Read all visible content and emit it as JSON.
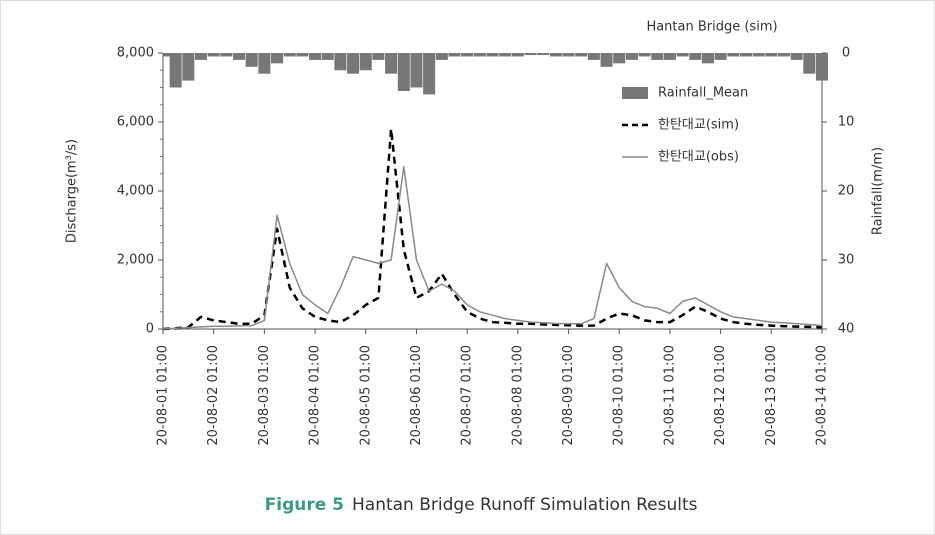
{
  "chart_data": {
    "type": "line",
    "title": "Hantan Bridge (sim)",
    "caption": {
      "label": "Figure 5",
      "text": "Hantan Bridge Runoff Simulation Results"
    },
    "ylabel": "Discharge(m³/s)",
    "y2label": "Rainfall(m/m)",
    "x": [
      "20-08-01 01:00",
      "20-08-01 07:00",
      "20-08-01 13:00",
      "20-08-01 19:00",
      "20-08-02 01:00",
      "20-08-02 07:00",
      "20-08-02 13:00",
      "20-08-02 19:00",
      "20-08-03 01:00",
      "20-08-03 07:00",
      "20-08-03 13:00",
      "20-08-03 19:00",
      "20-08-04 01:00",
      "20-08-04 07:00",
      "20-08-04 13:00",
      "20-08-04 19:00",
      "20-08-05 01:00",
      "20-08-05 07:00",
      "20-08-05 13:00",
      "20-08-05 19:00",
      "20-08-06 01:00",
      "20-08-06 07:00",
      "20-08-06 13:00",
      "20-08-06 19:00",
      "20-08-07 01:00",
      "20-08-07 07:00",
      "20-08-07 13:00",
      "20-08-07 19:00",
      "20-08-08 01:00",
      "20-08-08 07:00",
      "20-08-08 13:00",
      "20-08-08 19:00",
      "20-08-09 01:00",
      "20-08-09 07:00",
      "20-08-09 13:00",
      "20-08-09 19:00",
      "20-08-10 01:00",
      "20-08-10 07:00",
      "20-08-10 13:00",
      "20-08-10 19:00",
      "20-08-11 01:00",
      "20-08-11 07:00",
      "20-08-11 13:00",
      "20-08-11 19:00",
      "20-08-12 01:00",
      "20-08-12 07:00",
      "20-08-12 13:00",
      "20-08-12 19:00",
      "20-08-13 01:00",
      "20-08-13 07:00",
      "20-08-13 13:00",
      "20-08-13 19:00",
      "20-08-14 01:00"
    ],
    "xlim": [
      "20-08-01 01:00",
      "20-08-14 01:00"
    ],
    "xticks": [
      "20-08-01 01:00",
      "20-08-02 01:00",
      "20-08-03 01:00",
      "20-08-04 01:00",
      "20-08-05 01:00",
      "20-08-06 01:00",
      "20-08-07 01:00",
      "20-08-08 01:00",
      "20-08-09 01:00",
      "20-08-10 01:00",
      "20-08-11 01:00",
      "20-08-12 01:00",
      "20-08-13 01:00",
      "20-08-14 01:00"
    ],
    "ylim": [
      0,
      8000
    ],
    "yticks": [
      0,
      {
        "value": 2000,
        "label": "2,000"
      },
      {
        "value": 4000,
        "label": "4,000"
      },
      {
        "value": 6000,
        "label": "6,000"
      },
      {
        "value": 8000,
        "label": "8,000"
      }
    ],
    "y2lim": [
      0,
      40
    ],
    "y2ticks": [
      0,
      10,
      20,
      30,
      40
    ],
    "y2_inverted": true,
    "series": [
      {
        "name": "Rainfall_Mean",
        "type": "bar",
        "axis": "y2",
        "color": "#777777",
        "values": [
          0.5,
          5,
          4,
          1,
          0.5,
          0.5,
          1,
          2,
          3,
          1.5,
          0.5,
          0.5,
          1,
          1,
          2.5,
          3,
          2.5,
          1,
          3,
          5.5,
          5,
          6,
          1,
          0.5,
          0.5,
          0.5,
          0.5,
          0.5,
          0.5,
          0.3,
          0.3,
          0.5,
          0.5,
          0.5,
          1,
          2,
          1.5,
          1,
          0.5,
          1,
          1,
          0.5,
          1,
          1.5,
          1,
          0.5,
          0.5,
          0.5,
          0.5,
          0.5,
          1,
          3,
          4
        ]
      },
      {
        "name": "한탄대교(sim)",
        "type": "line",
        "line_style": "dashed",
        "color": "#000000",
        "values": [
          0,
          20,
          50,
          350,
          250,
          200,
          150,
          150,
          400,
          2900,
          1200,
          600,
          350,
          250,
          200,
          400,
          700,
          900,
          5800,
          2300,
          900,
          1100,
          1600,
          1000,
          500,
          300,
          200,
          180,
          150,
          150,
          130,
          120,
          110,
          100,
          100,
          300,
          450,
          400,
          250,
          200,
          200,
          400,
          650,
          500,
          300,
          200,
          150,
          120,
          100,
          80,
          70,
          60,
          50
        ]
      },
      {
        "name": "한탄대교(obs)",
        "type": "line",
        "line_style": "solid",
        "color": "#8a8a8a",
        "values": [
          0,
          20,
          40,
          60,
          80,
          80,
          90,
          100,
          250,
          3300,
          1900,
          1000,
          700,
          450,
          1200,
          2100,
          2000,
          1900,
          2000,
          4700,
          2000,
          1100,
          1300,
          1100,
          700,
          500,
          400,
          300,
          250,
          200,
          180,
          160,
          150,
          150,
          300,
          1900,
          1200,
          800,
          650,
          600,
          450,
          800,
          900,
          700,
          500,
          350,
          300,
          250,
          200,
          180,
          150,
          130,
          100
        ]
      }
    ],
    "legend": "upper right"
  }
}
